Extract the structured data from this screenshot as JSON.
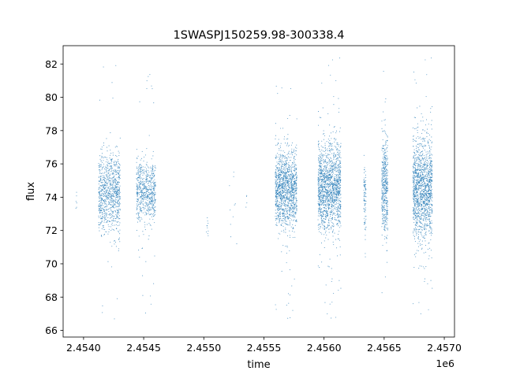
{
  "chart_data": {
    "type": "scatter",
    "title": "1SWASPJ150259.98-300338.4",
    "xlabel": "time",
    "ylabel": "flux",
    "x_offset_label": "1e6",
    "xlim": [
      2453830,
      2457085
    ],
    "ylim": [
      65.6,
      83.1
    ],
    "grid": false,
    "legend": "none",
    "marker_color": "#1f77b4",
    "x_ticks": [
      {
        "value": 2454000,
        "label": "2.4540"
      },
      {
        "value": 2454500,
        "label": "2.4545"
      },
      {
        "value": 2455000,
        "label": "2.4550"
      },
      {
        "value": 2455500,
        "label": "2.4555"
      },
      {
        "value": 2456000,
        "label": "2.4560"
      },
      {
        "value": 2456500,
        "label": "2.4565"
      },
      {
        "value": 2457000,
        "label": "2.4570"
      }
    ],
    "y_ticks": [
      {
        "value": 66,
        "label": "66"
      },
      {
        "value": 68,
        "label": "68"
      },
      {
        "value": 70,
        "label": "70"
      },
      {
        "value": 72,
        "label": "72"
      },
      {
        "value": 74,
        "label": "74"
      },
      {
        "value": 76,
        "label": "76"
      },
      {
        "value": 78,
        "label": "78"
      },
      {
        "value": 80,
        "label": "80"
      },
      {
        "value": 82,
        "label": "82"
      }
    ],
    "series": [
      {
        "clusters": [
          {
            "t_start": 2453935,
            "t_end": 2453945,
            "flux_center": 73.6,
            "flux_spread": 0.5,
            "flux_min": 72.6,
            "flux_max": 74.3,
            "n": 6
          },
          {
            "t_start": 2454125,
            "t_end": 2454305,
            "flux_center": 74.2,
            "flux_spread": 1.2,
            "flux_min": 66.5,
            "flux_max": 82.3,
            "n": 900
          },
          {
            "t_start": 2454440,
            "t_end": 2454600,
            "flux_center": 74.3,
            "flux_spread": 0.9,
            "flux_min": 67.0,
            "flux_max": 82.0,
            "n": 650
          },
          {
            "t_start": 2455020,
            "t_end": 2455040,
            "flux_center": 72.0,
            "flux_spread": 0.3,
            "flux_min": 71.5,
            "flux_max": 72.8,
            "n": 10
          },
          {
            "t_start": 2455210,
            "t_end": 2455280,
            "flux_center": 73.5,
            "flux_spread": 1.0,
            "flux_min": 71.2,
            "flux_max": 76.3,
            "n": 10
          },
          {
            "t_start": 2455350,
            "t_end": 2455360,
            "flux_center": 73.8,
            "flux_spread": 0.3,
            "flux_min": 73.4,
            "flux_max": 74.1,
            "n": 4
          },
          {
            "t_start": 2455595,
            "t_end": 2455775,
            "flux_center": 74.5,
            "flux_spread": 1.1,
            "flux_min": 66.5,
            "flux_max": 81.5,
            "n": 1300
          },
          {
            "t_start": 2455950,
            "t_end": 2456140,
            "flux_center": 74.6,
            "flux_spread": 1.3,
            "flux_min": 66.5,
            "flux_max": 82.4,
            "n": 1500
          },
          {
            "t_start": 2456330,
            "t_end": 2456350,
            "flux_center": 74.0,
            "flux_spread": 1.0,
            "flux_min": 70.3,
            "flux_max": 77.0,
            "n": 90
          },
          {
            "t_start": 2456480,
            "t_end": 2456530,
            "flux_center": 74.5,
            "flux_spread": 1.4,
            "flux_min": 67.5,
            "flux_max": 82.5,
            "n": 450
          },
          {
            "t_start": 2456740,
            "t_end": 2456900,
            "flux_center": 74.5,
            "flux_spread": 1.5,
            "flux_min": 66.5,
            "flux_max": 82.4,
            "n": 1400
          }
        ]
      }
    ]
  }
}
